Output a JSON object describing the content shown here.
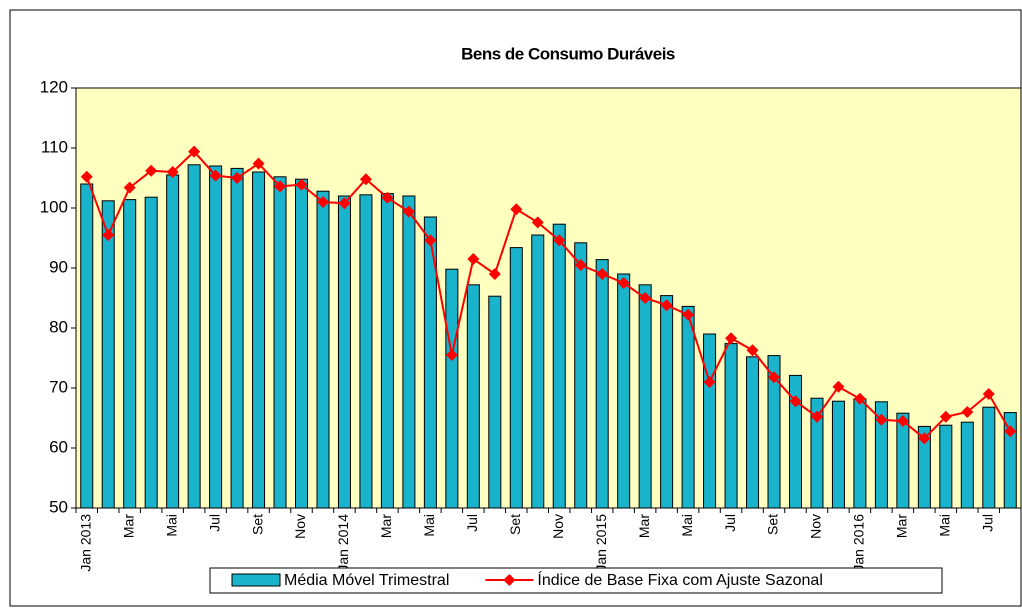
{
  "chart_data": {
    "type": "bar-line",
    "title": "Bens de Consumo Duráveis",
    "categories": [
      "Jan 2013",
      null,
      "Mar",
      null,
      "Mai",
      null,
      "Jul",
      null,
      "Set",
      null,
      "Nov",
      null,
      "Jan 2014",
      null,
      "Mar",
      null,
      "Mai",
      null,
      "Jul",
      null,
      "Set",
      null,
      "Nov",
      null,
      "Jan 2015",
      null,
      "Mar",
      null,
      "Mai",
      null,
      "Jul",
      null,
      "Set",
      null,
      "Nov",
      null,
      "Jan 2016",
      null,
      "Mar",
      null,
      "Mai",
      null,
      "Jul",
      null
    ],
    "series": [
      {
        "name": "Média Móvel Trimestral",
        "type": "bar",
        "color": "#19b3cc",
        "values": [
          104,
          101.2,
          101.4,
          101.8,
          105.5,
          107.2,
          107,
          106.6,
          106,
          105.2,
          104.8,
          102.8,
          102,
          102.2,
          102.4,
          102,
          98.5,
          89.8,
          87.2,
          85.3,
          93.4,
          95.5,
          97.3,
          94.2,
          91.4,
          89,
          87.2,
          85.4,
          83.6,
          79,
          77.4,
          75.2,
          75.4,
          72.1,
          68.3,
          67.8,
          68.2,
          67.7,
          65.8,
          63.6,
          63.8,
          64.3,
          66.8,
          65.9
        ]
      },
      {
        "name": "Índice de Base Fixa com Ajuste Sazonal",
        "type": "line",
        "color": "#ff0000",
        "values": [
          105.2,
          95.5,
          103.4,
          106.2,
          106,
          109.4,
          105.4,
          105,
          107.4,
          103.6,
          103.9,
          101,
          100.8,
          104.8,
          101.7,
          99.4,
          94.6,
          75.5,
          91.5,
          89,
          99.8,
          97.6,
          94.6,
          90.5,
          89,
          87.5,
          85,
          83.8,
          82.2,
          71,
          78.3,
          76.3,
          71.8,
          67.8,
          65.2,
          70.2,
          68.2,
          64.7,
          64.5,
          61.6,
          65.2,
          66,
          69,
          62.8
        ]
      }
    ],
    "ylim": [
      50,
      120
    ],
    "yticks": [
      50,
      60,
      70,
      80,
      90,
      100,
      110,
      120
    ],
    "grid": false,
    "legend": "bottom",
    "plot_background": "#ffffc0"
  }
}
